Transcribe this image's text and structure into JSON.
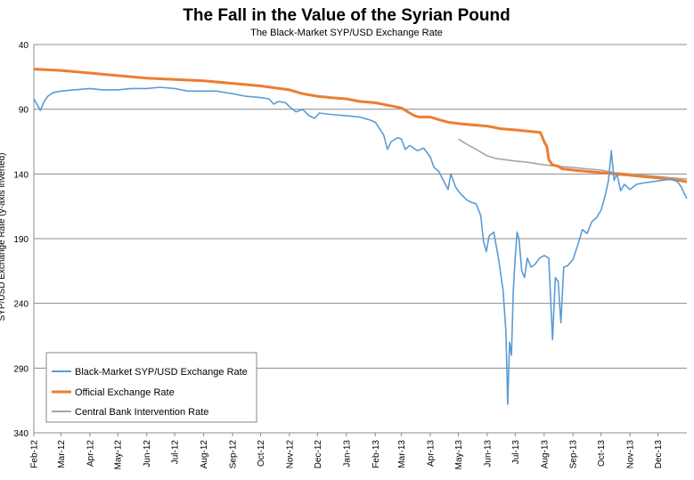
{
  "chart_data": {
    "type": "line",
    "title": "The Fall in the Value of the Syrian Pound",
    "subtitle": "The Black-Market SYP/USD Exchange Rate",
    "xlabel": "",
    "ylabel": "SYP/USD Exchange Rate (y-axis inverted)",
    "y_inverted": true,
    "ylim": [
      40,
      340
    ],
    "yticks": [
      40,
      90,
      140,
      190,
      240,
      290,
      340
    ],
    "xlim": [
      "2012-02-01",
      "2014-01-01"
    ],
    "x_tick_labels": [
      "Feb-12",
      "Mar-12",
      "Apr-12",
      "May-12",
      "Jun-12",
      "Jul-12",
      "Aug-12",
      "Sep-12",
      "Oct-12",
      "Nov-12",
      "Dec-12",
      "Jan-13",
      "Feb-13",
      "Mar-13",
      "Apr-13",
      "May-13",
      "Jun-13",
      "Jul-13",
      "Aug-13",
      "Sep-13",
      "Oct-13",
      "Nov-13",
      "Dec-13"
    ],
    "grid": "horizontal",
    "legend_position": "bottom-left",
    "series": [
      {
        "name": "Black-Market SYP/USD Exchange Rate",
        "color": "#5b9bd5",
        "points": [
          [
            "2012-02-01",
            82
          ],
          [
            "2012-02-05",
            87
          ],
          [
            "2012-02-08",
            91
          ],
          [
            "2012-02-12",
            84
          ],
          [
            "2012-02-16",
            80
          ],
          [
            "2012-02-22",
            77
          ],
          [
            "2012-03-01",
            76
          ],
          [
            "2012-03-15",
            75
          ],
          [
            "2012-04-01",
            74
          ],
          [
            "2012-04-15",
            75
          ],
          [
            "2012-05-01",
            75
          ],
          [
            "2012-05-15",
            74
          ],
          [
            "2012-06-01",
            74
          ],
          [
            "2012-06-15",
            73
          ],
          [
            "2012-07-01",
            74
          ],
          [
            "2012-07-15",
            76
          ],
          [
            "2012-08-01",
            76
          ],
          [
            "2012-08-15",
            76
          ],
          [
            "2012-09-01",
            78
          ],
          [
            "2012-09-15",
            80
          ],
          [
            "2012-10-01",
            81
          ],
          [
            "2012-10-10",
            82
          ],
          [
            "2012-10-15",
            86
          ],
          [
            "2012-10-20",
            84
          ],
          [
            "2012-10-28",
            85
          ],
          [
            "2012-11-01",
            88
          ],
          [
            "2012-11-08",
            92
          ],
          [
            "2012-11-15",
            90
          ],
          [
            "2012-11-22",
            95
          ],
          [
            "2012-11-28",
            97
          ],
          [
            "2012-12-03",
            93
          ],
          [
            "2012-12-15",
            94
          ],
          [
            "2013-01-01",
            95
          ],
          [
            "2013-01-15",
            96
          ],
          [
            "2013-01-25",
            98
          ],
          [
            "2013-02-01",
            100
          ],
          [
            "2013-02-10",
            110
          ],
          [
            "2013-02-14",
            121
          ],
          [
            "2013-02-18",
            115
          ],
          [
            "2013-02-25",
            112
          ],
          [
            "2013-03-01",
            113
          ],
          [
            "2013-03-05",
            121
          ],
          [
            "2013-03-10",
            118
          ],
          [
            "2013-03-18",
            122
          ],
          [
            "2013-03-25",
            120
          ],
          [
            "2013-04-01",
            127
          ],
          [
            "2013-04-05",
            135
          ],
          [
            "2013-04-10",
            138
          ],
          [
            "2013-04-15",
            145
          ],
          [
            "2013-04-20",
            152
          ],
          [
            "2013-04-23",
            140
          ],
          [
            "2013-04-28",
            150
          ],
          [
            "2013-05-03",
            155
          ],
          [
            "2013-05-10",
            160
          ],
          [
            "2013-05-15",
            162
          ],
          [
            "2013-05-20",
            163
          ],
          [
            "2013-05-25",
            172
          ],
          [
            "2013-05-28",
            192
          ],
          [
            "2013-05-31",
            200
          ],
          [
            "2013-06-03",
            188
          ],
          [
            "2013-06-08",
            185
          ],
          [
            "2013-06-13",
            205
          ],
          [
            "2013-06-18",
            230
          ],
          [
            "2013-06-21",
            262
          ],
          [
            "2013-06-23",
            318
          ],
          [
            "2013-06-25",
            270
          ],
          [
            "2013-06-27",
            280
          ],
          [
            "2013-06-29",
            230
          ],
          [
            "2013-07-01",
            205
          ],
          [
            "2013-07-03",
            185
          ],
          [
            "2013-07-05",
            190
          ],
          [
            "2013-07-08",
            215
          ],
          [
            "2013-07-11",
            220
          ],
          [
            "2013-07-14",
            205
          ],
          [
            "2013-07-18",
            212
          ],
          [
            "2013-07-22",
            210
          ],
          [
            "2013-07-27",
            205
          ],
          [
            "2013-08-01",
            203
          ],
          [
            "2013-08-06",
            205
          ],
          [
            "2013-08-10",
            268
          ],
          [
            "2013-08-13",
            220
          ],
          [
            "2013-08-16",
            223
          ],
          [
            "2013-08-19",
            255
          ],
          [
            "2013-08-22",
            212
          ],
          [
            "2013-08-26",
            211
          ],
          [
            "2013-09-01",
            206
          ],
          [
            "2013-09-06",
            195
          ],
          [
            "2013-09-11",
            183
          ],
          [
            "2013-09-16",
            186
          ],
          [
            "2013-09-21",
            177
          ],
          [
            "2013-09-26",
            174
          ],
          [
            "2013-10-01",
            168
          ],
          [
            "2013-10-06",
            155
          ],
          [
            "2013-10-09",
            145
          ],
          [
            "2013-10-12",
            122
          ],
          [
            "2013-10-15",
            145
          ],
          [
            "2013-10-18",
            140
          ],
          [
            "2013-10-22",
            153
          ],
          [
            "2013-10-26",
            148
          ],
          [
            "2013-11-01",
            152
          ],
          [
            "2013-11-08",
            148
          ],
          [
            "2013-11-15",
            147
          ],
          [
            "2013-11-25",
            146
          ],
          [
            "2013-12-05",
            145
          ],
          [
            "2013-12-15",
            144
          ],
          [
            "2013-12-22",
            146
          ],
          [
            "2013-12-26",
            150
          ],
          [
            "2013-12-29",
            155
          ],
          [
            "2014-01-01",
            159
          ]
        ]
      },
      {
        "name": "Official Exchange Rate",
        "color": "#ed7d31",
        "points": [
          [
            "2012-02-01",
            59
          ],
          [
            "2012-03-01",
            60
          ],
          [
            "2012-04-01",
            62
          ],
          [
            "2012-05-01",
            64
          ],
          [
            "2012-06-01",
            66
          ],
          [
            "2012-07-01",
            67
          ],
          [
            "2012-08-01",
            68
          ],
          [
            "2012-09-01",
            70
          ],
          [
            "2012-10-01",
            72
          ],
          [
            "2012-11-01",
            75
          ],
          [
            "2012-11-15",
            78
          ],
          [
            "2012-12-01",
            80
          ],
          [
            "2012-12-15",
            81
          ],
          [
            "2013-01-01",
            82
          ],
          [
            "2013-01-15",
            84
          ],
          [
            "2013-02-01",
            85
          ],
          [
            "2013-02-15",
            87
          ],
          [
            "2013-03-01",
            89
          ],
          [
            "2013-03-10",
            93
          ],
          [
            "2013-03-15",
            95
          ],
          [
            "2013-03-20",
            96
          ],
          [
            "2013-04-01",
            96
          ],
          [
            "2013-04-10",
            98
          ],
          [
            "2013-04-20",
            100
          ],
          [
            "2013-05-01",
            101
          ],
          [
            "2013-05-15",
            102
          ],
          [
            "2013-06-01",
            103
          ],
          [
            "2013-06-15",
            105
          ],
          [
            "2013-07-01",
            106
          ],
          [
            "2013-07-15",
            107
          ],
          [
            "2013-07-28",
            108
          ],
          [
            "2013-08-01",
            115
          ],
          [
            "2013-08-04",
            119
          ],
          [
            "2013-08-06",
            129
          ],
          [
            "2013-08-10",
            133
          ],
          [
            "2013-08-16",
            134
          ],
          [
            "2013-08-20",
            136
          ],
          [
            "2013-09-01",
            137
          ],
          [
            "2013-09-15",
            138
          ],
          [
            "2013-10-01",
            139
          ],
          [
            "2013-10-15",
            140
          ],
          [
            "2013-11-01",
            141
          ],
          [
            "2013-11-15",
            142
          ],
          [
            "2013-12-01",
            143
          ],
          [
            "2013-12-15",
            144
          ],
          [
            "2014-01-01",
            146
          ]
        ]
      },
      {
        "name": "Central Bank Intervention Rate",
        "color": "#a5a5a5",
        "points": [
          [
            "2013-05-01",
            113
          ],
          [
            "2013-05-10",
            117
          ],
          [
            "2013-05-20",
            121
          ],
          [
            "2013-06-01",
            126
          ],
          [
            "2013-06-10",
            128
          ],
          [
            "2013-06-20",
            129
          ],
          [
            "2013-07-01",
            130
          ],
          [
            "2013-07-15",
            131
          ],
          [
            "2013-08-01",
            133
          ],
          [
            "2013-08-15",
            134
          ],
          [
            "2013-09-01",
            135
          ],
          [
            "2013-09-15",
            136
          ],
          [
            "2013-10-01",
            137
          ],
          [
            "2013-10-15",
            139
          ],
          [
            "2013-11-01",
            140
          ],
          [
            "2013-11-15",
            141
          ],
          [
            "2013-12-01",
            142
          ],
          [
            "2013-12-15",
            143
          ],
          [
            "2014-01-01",
            144
          ]
        ]
      }
    ]
  }
}
